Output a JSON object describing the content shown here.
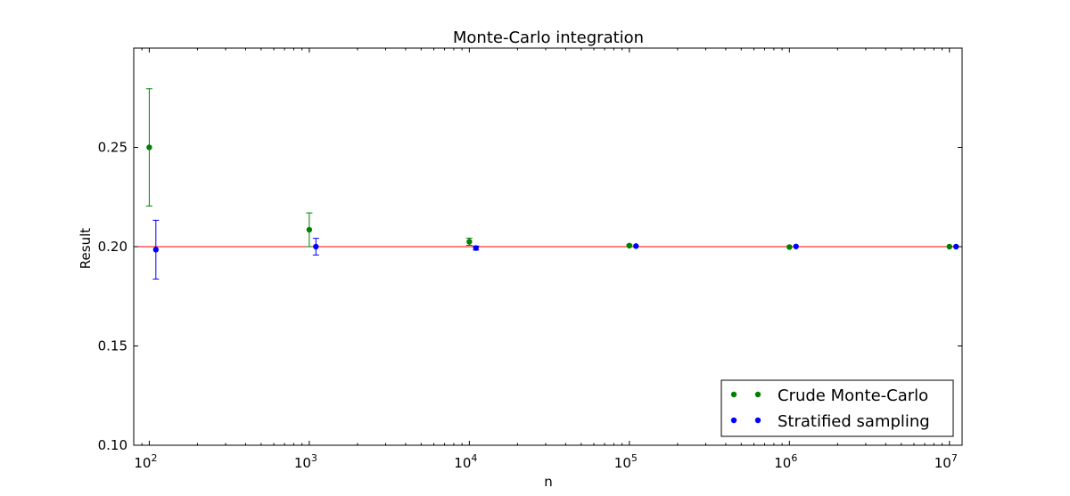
{
  "chart_data": {
    "type": "scatter",
    "title": "Monte-Carlo integration",
    "xlabel": "n",
    "ylabel": "Result",
    "x_scale": "log",
    "xlim": [
      80,
      12000000
    ],
    "ylim": [
      0.1,
      0.3
    ],
    "x_ticks": [
      {
        "value": 100,
        "base": "10",
        "exp": "2"
      },
      {
        "value": 1000,
        "base": "10",
        "exp": "3"
      },
      {
        "value": 10000,
        "base": "10",
        "exp": "4"
      },
      {
        "value": 100000,
        "base": "10",
        "exp": "5"
      },
      {
        "value": 1000000,
        "base": "10",
        "exp": "6"
      },
      {
        "value": 10000000,
        "base": "10",
        "exp": "7"
      }
    ],
    "y_ticks": [
      {
        "value": 0.1,
        "label": "0.10"
      },
      {
        "value": 0.15,
        "label": "0.15"
      },
      {
        "value": 0.2,
        "label": "0.20"
      },
      {
        "value": 0.25,
        "label": "0.25"
      }
    ],
    "grid": false,
    "legend_position": "lower-right",
    "reference_line": {
      "y": 0.2,
      "color": "#ff0000"
    },
    "series": [
      {
        "name": "Crude Monte-Carlo",
        "color": "#008000",
        "points": [
          {
            "x": 100,
            "y": 0.25,
            "err": 0.0295
          },
          {
            "x": 1000,
            "y": 0.2085,
            "err": 0.0085
          },
          {
            "x": 10000,
            "y": 0.2025,
            "err": 0.0018
          },
          {
            "x": 100000,
            "y": 0.2005,
            "err": 0.0005
          },
          {
            "x": 1000000,
            "y": 0.1998,
            "err": 0.0002
          },
          {
            "x": 10000000,
            "y": 0.2,
            "err": 0.0001
          }
        ]
      },
      {
        "name": "Stratified sampling",
        "color": "#0000ff",
        "points": [
          {
            "x": 110,
            "y": 0.1985,
            "err": 0.0148
          },
          {
            "x": 1100,
            "y": 0.2,
            "err": 0.0042
          },
          {
            "x": 11000,
            "y": 0.1993,
            "err": 0.001
          },
          {
            "x": 110000,
            "y": 0.2003,
            "err": 0.0003
          },
          {
            "x": 1100000,
            "y": 0.2001,
            "err": 0.0001
          },
          {
            "x": 11000000,
            "y": 0.2,
            "err": 5e-05
          }
        ]
      }
    ]
  }
}
